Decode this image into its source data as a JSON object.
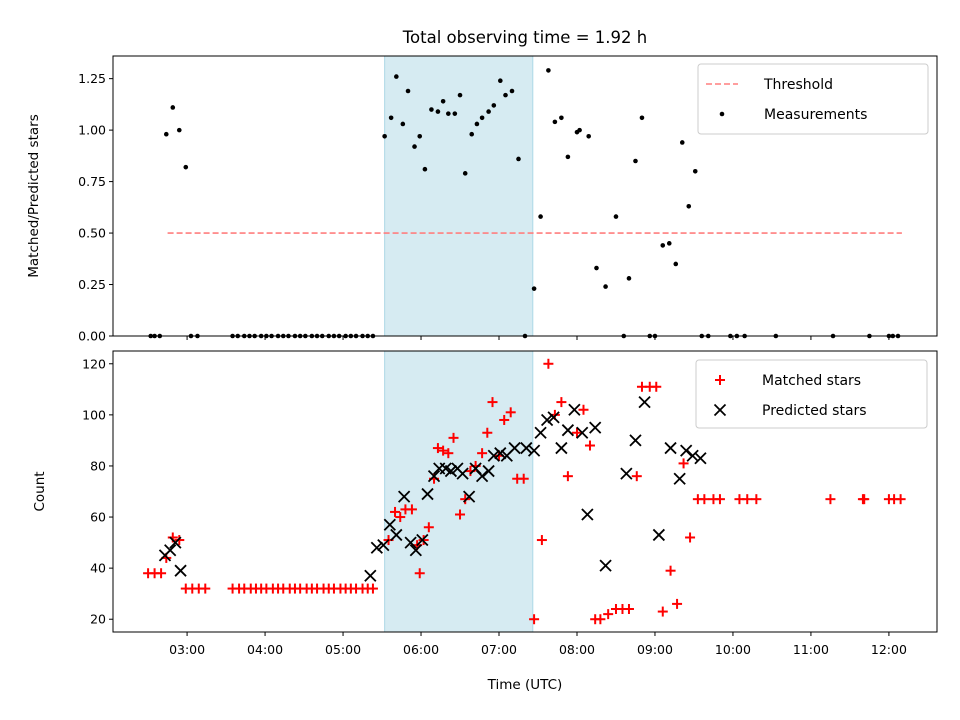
{
  "title": "Total observing time = 1.92 h",
  "colors": {
    "threshold": "#ff7f7f",
    "measurement": "#000000",
    "matched": "#ff0000",
    "predicted": "#000000",
    "span": "#add8e6"
  },
  "chart_data": [
    {
      "type": "scatter",
      "ylabel": "Matched/Predicted stars",
      "ylim": [
        0,
        1.36
      ],
      "yticks": [
        "0.00",
        "0.25",
        "0.50",
        "0.75",
        "1.00",
        "1.25"
      ],
      "highlight_span": [
        "05:32",
        "07:26"
      ],
      "legend_position": "upper right",
      "threshold": {
        "name": "Threshold",
        "y": 0.5,
        "x_range": [
          "02:45",
          "12:10"
        ]
      },
      "series": [
        {
          "name": "Measurements",
          "points": [
            [
              "02:32",
              0
            ],
            [
              "02:35",
              0
            ],
            [
              "02:39",
              0
            ],
            [
              "02:44",
              0.98
            ],
            [
              "02:49",
              1.11
            ],
            [
              "02:54",
              1.0
            ],
            [
              "02:59",
              0.82
            ],
            [
              "03:03",
              0
            ],
            [
              "03:08",
              0
            ],
            [
              "03:35",
              0
            ],
            [
              "03:39",
              0
            ],
            [
              "03:44",
              0
            ],
            [
              "03:48",
              0
            ],
            [
              "03:52",
              0
            ],
            [
              "03:57",
              0
            ],
            [
              "04:01",
              0
            ],
            [
              "04:05",
              0
            ],
            [
              "04:10",
              0
            ],
            [
              "04:14",
              0
            ],
            [
              "04:18",
              0
            ],
            [
              "04:23",
              0
            ],
            [
              "04:27",
              0
            ],
            [
              "04:31",
              0
            ],
            [
              "04:36",
              0
            ],
            [
              "04:40",
              0
            ],
            [
              "04:44",
              0
            ],
            [
              "04:49",
              0
            ],
            [
              "04:53",
              0
            ],
            [
              "04:57",
              0
            ],
            [
              "05:02",
              0
            ],
            [
              "05:06",
              0
            ],
            [
              "05:10",
              0
            ],
            [
              "05:15",
              0
            ],
            [
              "05:19",
              0
            ],
            [
              "05:23",
              0
            ],
            [
              "05:32",
              0.97
            ],
            [
              "05:37",
              1.06
            ],
            [
              "05:41",
              1.26
            ],
            [
              "05:46",
              1.03
            ],
            [
              "05:50",
              1.19
            ],
            [
              "05:55",
              0.92
            ],
            [
              "05:59",
              0.97
            ],
            [
              "06:03",
              0.81
            ],
            [
              "06:08",
              1.1
            ],
            [
              "06:13",
              1.09
            ],
            [
              "06:17",
              1.14
            ],
            [
              "06:21",
              1.08
            ],
            [
              "06:26",
              1.08
            ],
            [
              "06:30",
              1.17
            ],
            [
              "06:34",
              0.79
            ],
            [
              "06:39",
              0.98
            ],
            [
              "06:43",
              1.03
            ],
            [
              "06:47",
              1.06
            ],
            [
              "06:52",
              1.09
            ],
            [
              "06:56",
              1.12
            ],
            [
              "07:01",
              1.24
            ],
            [
              "07:05",
              1.17
            ],
            [
              "07:10",
              1.19
            ],
            [
              "07:15",
              0.86
            ],
            [
              "07:20",
              0
            ],
            [
              "07:27",
              0.23
            ],
            [
              "07:32",
              0.58
            ],
            [
              "07:38",
              1.29
            ],
            [
              "07:43",
              1.04
            ],
            [
              "07:48",
              1.06
            ],
            [
              "07:53",
              0.87
            ],
            [
              "08:00",
              0.99
            ],
            [
              "08:02",
              1.0
            ],
            [
              "08:09",
              0.97
            ],
            [
              "08:15",
              0.33
            ],
            [
              "08:22",
              0.24
            ],
            [
              "08:30",
              0.58
            ],
            [
              "08:36",
              0
            ],
            [
              "08:40",
              0.28
            ],
            [
              "08:45",
              0.85
            ],
            [
              "08:50",
              1.06
            ],
            [
              "08:56",
              0
            ],
            [
              "09:00",
              0
            ],
            [
              "09:06",
              0.44
            ],
            [
              "09:11",
              0.45
            ],
            [
              "09:16",
              0.35
            ],
            [
              "09:21",
              0.94
            ],
            [
              "09:26",
              0.63
            ],
            [
              "09:31",
              0.8
            ],
            [
              "09:36",
              0
            ],
            [
              "09:41",
              0
            ],
            [
              "09:58",
              0
            ],
            [
              "10:03",
              0
            ],
            [
              "10:09",
              0
            ],
            [
              "10:33",
              0
            ],
            [
              "11:17",
              0
            ],
            [
              "11:45",
              0
            ],
            [
              "12:00",
              0
            ],
            [
              "12:03",
              0
            ],
            [
              "12:07",
              0
            ]
          ]
        }
      ]
    },
    {
      "type": "scatter",
      "xlabel": "Time (UTC)",
      "ylabel": "Count",
      "xlim": [
        "02:03",
        "12:37"
      ],
      "xticks": [
        "03:00",
        "04:00",
        "05:00",
        "06:00",
        "07:00",
        "08:00",
        "09:00",
        "10:00",
        "11:00",
        "12:00"
      ],
      "ylim": [
        15,
        125
      ],
      "yticks": [
        "20",
        "40",
        "60",
        "80",
        "100",
        "120"
      ],
      "highlight_span": [
        "05:32",
        "07:26"
      ],
      "legend_position": "upper right",
      "series": [
        {
          "name": "Matched stars",
          "points": [
            [
              "02:30",
              38
            ],
            [
              "02:35",
              38
            ],
            [
              "02:40",
              38
            ],
            [
              "02:44",
              44
            ],
            [
              "02:49",
              52
            ],
            [
              "02:54",
              51
            ],
            [
              "02:59",
              32
            ],
            [
              "03:04",
              32
            ],
            [
              "03:09",
              32
            ],
            [
              "03:14",
              32
            ],
            [
              "03:35",
              32
            ],
            [
              "03:40",
              32
            ],
            [
              "03:44",
              32
            ],
            [
              "03:49",
              32
            ],
            [
              "03:53",
              32
            ],
            [
              "03:57",
              32
            ],
            [
              "04:01",
              32
            ],
            [
              "04:06",
              32
            ],
            [
              "04:10",
              32
            ],
            [
              "04:14",
              32
            ],
            [
              "04:19",
              32
            ],
            [
              "04:23",
              32
            ],
            [
              "04:27",
              32
            ],
            [
              "04:32",
              32
            ],
            [
              "04:36",
              32
            ],
            [
              "04:40",
              32
            ],
            [
              "04:45",
              32
            ],
            [
              "04:49",
              32
            ],
            [
              "04:53",
              32
            ],
            [
              "04:58",
              32
            ],
            [
              "05:02",
              32
            ],
            [
              "05:06",
              32
            ],
            [
              "05:10",
              32
            ],
            [
              "05:15",
              32
            ],
            [
              "05:19",
              32
            ],
            [
              "05:23",
              32
            ],
            [
              "05:35",
              51
            ],
            [
              "05:40",
              62
            ],
            [
              "05:44",
              60
            ],
            [
              "05:48",
              63
            ],
            [
              "05:53",
              63
            ],
            [
              "05:57",
              49
            ],
            [
              "05:59",
              38
            ],
            [
              "06:02",
              51
            ],
            [
              "06:06",
              56
            ],
            [
              "06:10",
              75
            ],
            [
              "06:13",
              87
            ],
            [
              "06:17",
              86
            ],
            [
              "06:21",
              85
            ],
            [
              "06:25",
              91
            ],
            [
              "06:30",
              61
            ],
            [
              "06:34",
              67
            ],
            [
              "06:38",
              78
            ],
            [
              "06:42",
              80
            ],
            [
              "06:47",
              85
            ],
            [
              "06:51",
              93
            ],
            [
              "06:55",
              105
            ],
            [
              "07:00",
              84
            ],
            [
              "07:04",
              98
            ],
            [
              "07:09",
              101
            ],
            [
              "07:14",
              75
            ],
            [
              "07:19",
              75
            ],
            [
              "07:27",
              20
            ],
            [
              "07:33",
              51
            ],
            [
              "07:38",
              120
            ],
            [
              "07:43",
              100
            ],
            [
              "07:48",
              105
            ],
            [
              "07:53",
              76
            ],
            [
              "08:00",
              93
            ],
            [
              "08:05",
              102
            ],
            [
              "08:10",
              88
            ],
            [
              "08:14",
              20
            ],
            [
              "08:18",
              20
            ],
            [
              "08:24",
              22
            ],
            [
              "08:30",
              24
            ],
            [
              "08:35",
              24
            ],
            [
              "08:40",
              24
            ],
            [
              "08:46",
              76
            ],
            [
              "08:50",
              111
            ],
            [
              "08:56",
              111
            ],
            [
              "09:01",
              111
            ],
            [
              "09:06",
              23
            ],
            [
              "09:12",
              39
            ],
            [
              "09:17",
              26
            ],
            [
              "09:22",
              81
            ],
            [
              "09:27",
              52
            ],
            [
              "09:33",
              67
            ],
            [
              "09:38",
              67
            ],
            [
              "09:45",
              67
            ],
            [
              "09:50",
              67
            ],
            [
              "10:05",
              67
            ],
            [
              "10:11",
              67
            ],
            [
              "10:18",
              67
            ],
            [
              "11:15",
              67
            ],
            [
              "11:40",
              67
            ],
            [
              "11:41",
              67
            ],
            [
              "12:00",
              67
            ],
            [
              "12:04",
              67
            ],
            [
              "12:09",
              67
            ]
          ]
        },
        {
          "name": "Predicted stars",
          "points": [
            [
              "02:43",
              45
            ],
            [
              "02:47",
              47
            ],
            [
              "02:51",
              50
            ],
            [
              "02:55",
              39
            ],
            [
              "05:21",
              37
            ],
            [
              "05:26",
              48
            ],
            [
              "05:31",
              49
            ],
            [
              "05:36",
              57
            ],
            [
              "05:41",
              53
            ],
            [
              "05:47",
              68
            ],
            [
              "05:52",
              50
            ],
            [
              "05:56",
              47
            ],
            [
              "06:01",
              51
            ],
            [
              "06:05",
              69
            ],
            [
              "06:10",
              76
            ],
            [
              "06:14",
              79
            ],
            [
              "06:19",
              79
            ],
            [
              "06:23",
              78
            ],
            [
              "06:28",
              79
            ],
            [
              "06:32",
              77
            ],
            [
              "06:37",
              68
            ],
            [
              "06:42",
              79
            ],
            [
              "06:47",
              76
            ],
            [
              "06:52",
              78
            ],
            [
              "06:56",
              84
            ],
            [
              "07:01",
              85
            ],
            [
              "07:06",
              84
            ],
            [
              "07:12",
              87
            ],
            [
              "07:21",
              87
            ],
            [
              "07:27",
              86
            ],
            [
              "07:32",
              93
            ],
            [
              "07:37",
              98
            ],
            [
              "07:42",
              99
            ],
            [
              "07:48",
              87
            ],
            [
              "07:53",
              94
            ],
            [
              "07:58",
              102
            ],
            [
              "08:04",
              93
            ],
            [
              "08:08",
              61
            ],
            [
              "08:14",
              95
            ],
            [
              "08:22",
              41
            ],
            [
              "08:38",
              77
            ],
            [
              "08:45",
              90
            ],
            [
              "08:52",
              105
            ],
            [
              "09:03",
              53
            ],
            [
              "09:12",
              87
            ],
            [
              "09:19",
              75
            ],
            [
              "09:24",
              86
            ],
            [
              "09:29",
              84
            ],
            [
              "09:35",
              83
            ]
          ]
        }
      ]
    }
  ]
}
